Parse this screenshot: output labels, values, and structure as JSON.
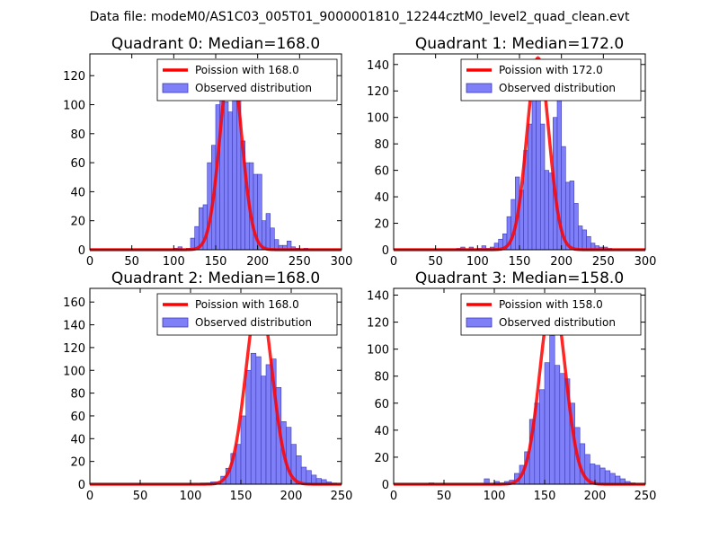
{
  "figure": {
    "suptitle": "Data file: modeM0/AS1C03_005T01_9000001810_12244cztM0_level2_quad_clean.evt"
  },
  "colors": {
    "bar_fill": "#7f7ff7",
    "bar_edge": "#3a3ab8",
    "poisson_line": "#ff0000",
    "background": "#ffffff"
  },
  "chart_data": [
    {
      "type": "bar",
      "title": "Quadrant 0: Median=168.0",
      "legend": [
        "Poission with 168.0",
        "Observed distribution"
      ],
      "legend_loc": "upper right",
      "xlim": [
        0,
        300
      ],
      "ylim": [
        0,
        135
      ],
      "xticks": [
        0,
        50,
        100,
        150,
        200,
        250,
        300
      ],
      "yticks": [
        0,
        20,
        40,
        60,
        80,
        100,
        120
      ],
      "bin_width": 5,
      "bins": [
        [
          100,
          1
        ],
        [
          105,
          2
        ],
        [
          110,
          0
        ],
        [
          115,
          1
        ],
        [
          120,
          8
        ],
        [
          125,
          16
        ],
        [
          130,
          29
        ],
        [
          135,
          31
        ],
        [
          140,
          60
        ],
        [
          145,
          72
        ],
        [
          150,
          100
        ],
        [
          155,
          120
        ],
        [
          160,
          102
        ],
        [
          165,
          95
        ],
        [
          170,
          128
        ],
        [
          175,
          108
        ],
        [
          180,
          75
        ],
        [
          185,
          60
        ],
        [
          190,
          60
        ],
        [
          195,
          52
        ],
        [
          200,
          52
        ],
        [
          205,
          20
        ],
        [
          210,
          25
        ],
        [
          215,
          15
        ],
        [
          220,
          7
        ],
        [
          225,
          3
        ],
        [
          230,
          3
        ],
        [
          235,
          6
        ],
        [
          240,
          2
        ],
        [
          245,
          1
        ],
        [
          250,
          0
        ],
        [
          255,
          1
        ]
      ],
      "poisson_mean": 168.0,
      "poisson_peak": 130
    },
    {
      "type": "bar",
      "title": "Quadrant 1: Median=172.0",
      "legend": [
        "Poission with 172.0",
        "Observed distribution"
      ],
      "legend_loc": "upper right",
      "xlim": [
        0,
        300
      ],
      "ylim": [
        0,
        148
      ],
      "xticks": [
        0,
        50,
        100,
        150,
        200,
        250,
        300
      ],
      "yticks": [
        0,
        20,
        40,
        60,
        80,
        100,
        120,
        140
      ],
      "bin_width": 5,
      "bins": [
        [
          75,
          1
        ],
        [
          80,
          2
        ],
        [
          85,
          0
        ],
        [
          90,
          2
        ],
        [
          95,
          0
        ],
        [
          100,
          1
        ],
        [
          105,
          3
        ],
        [
          110,
          1
        ],
        [
          115,
          2
        ],
        [
          120,
          5
        ],
        [
          125,
          8
        ],
        [
          130,
          12
        ],
        [
          135,
          25
        ],
        [
          140,
          38
        ],
        [
          145,
          55
        ],
        [
          150,
          45
        ],
        [
          155,
          75
        ],
        [
          160,
          95
        ],
        [
          165,
          118
        ],
        [
          170,
          120
        ],
        [
          175,
          95
        ],
        [
          180,
          60
        ],
        [
          185,
          58
        ],
        [
          190,
          100
        ],
        [
          195,
          115
        ],
        [
          200,
          78
        ],
        [
          205,
          51
        ],
        [
          210,
          52
        ],
        [
          215,
          35
        ],
        [
          220,
          18
        ],
        [
          225,
          15
        ],
        [
          230,
          10
        ],
        [
          235,
          5
        ],
        [
          240,
          3
        ],
        [
          245,
          2
        ],
        [
          250,
          2
        ],
        [
          255,
          1
        ]
      ],
      "poisson_mean": 172.0,
      "poisson_peak": 145
    },
    {
      "type": "bar",
      "title": "Quadrant 2: Median=168.0",
      "legend": [
        "Poission with 168.0",
        "Observed distribution"
      ],
      "legend_loc": "upper right",
      "xlim": [
        0,
        250
      ],
      "ylim": [
        0,
        172
      ],
      "xticks": [
        0,
        50,
        100,
        150,
        200,
        250
      ],
      "yticks": [
        0,
        20,
        40,
        60,
        80,
        100,
        120,
        140,
        160
      ],
      "bin_width": 5,
      "bins": [
        [
          110,
          1
        ],
        [
          115,
          1
        ],
        [
          120,
          2
        ],
        [
          125,
          2
        ],
        [
          130,
          7
        ],
        [
          135,
          14
        ],
        [
          140,
          27
        ],
        [
          145,
          35
        ],
        [
          150,
          60
        ],
        [
          155,
          100
        ],
        [
          160,
          115
        ],
        [
          165,
          112
        ],
        [
          170,
          95
        ],
        [
          175,
          105
        ],
        [
          180,
          110
        ],
        [
          185,
          85
        ],
        [
          190,
          55
        ],
        [
          195,
          50
        ],
        [
          200,
          35
        ],
        [
          205,
          25
        ],
        [
          210,
          15
        ],
        [
          215,
          12
        ],
        [
          220,
          8
        ],
        [
          225,
          5
        ],
        [
          230,
          4
        ],
        [
          235,
          2
        ],
        [
          240,
          1
        ]
      ],
      "poisson_mean": 168.0,
      "poisson_peak": 165
    },
    {
      "type": "bar",
      "title": "Quadrant 3: Median=158.0",
      "legend": [
        "Poission with 158.0",
        "Observed distribution"
      ],
      "legend_loc": "upper right",
      "xlim": [
        0,
        250
      ],
      "ylim": [
        0,
        145
      ],
      "xticks": [
        0,
        50,
        100,
        150,
        200,
        250
      ],
      "yticks": [
        0,
        20,
        40,
        60,
        80,
        100,
        120,
        140
      ],
      "bin_width": 5,
      "bins": [
        [
          35,
          1
        ],
        [
          40,
          0
        ],
        [
          45,
          0
        ],
        [
          50,
          0
        ],
        [
          55,
          0
        ],
        [
          60,
          0
        ],
        [
          65,
          0
        ],
        [
          70,
          0
        ],
        [
          75,
          0
        ],
        [
          80,
          0
        ],
        [
          85,
          0
        ],
        [
          90,
          4
        ],
        [
          95,
          0
        ],
        [
          100,
          2
        ],
        [
          105,
          1
        ],
        [
          110,
          2
        ],
        [
          115,
          3
        ],
        [
          120,
          8
        ],
        [
          125,
          14
        ],
        [
          130,
          24
        ],
        [
          135,
          48
        ],
        [
          140,
          60
        ],
        [
          145,
          70
        ],
        [
          150,
          90
        ],
        [
          155,
          110
        ],
        [
          160,
          88
        ],
        [
          165,
          82
        ],
        [
          170,
          78
        ],
        [
          175,
          60
        ],
        [
          180,
          42
        ],
        [
          185,
          30
        ],
        [
          190,
          22
        ],
        [
          195,
          15
        ],
        [
          200,
          14
        ],
        [
          205,
          12
        ],
        [
          210,
          10
        ],
        [
          215,
          8
        ],
        [
          220,
          6
        ],
        [
          225,
          4
        ],
        [
          230,
          2
        ],
        [
          235,
          1
        ]
      ],
      "poisson_mean": 158.0,
      "poisson_peak": 140
    }
  ]
}
